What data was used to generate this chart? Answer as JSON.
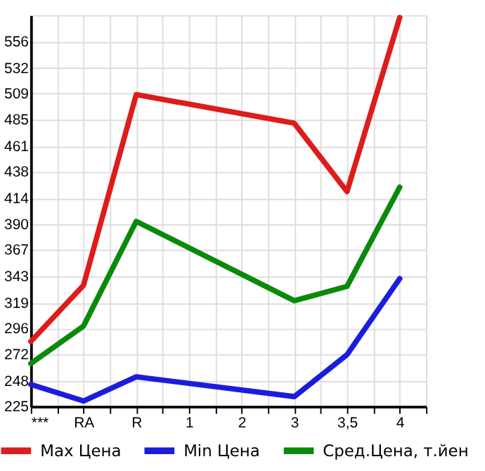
{
  "chart_data": {
    "type": "line",
    "categories": [
      "***",
      "RA",
      "R",
      "1",
      "2",
      "3",
      "3,5",
      "4"
    ],
    "series": [
      {
        "name": "Max Цена",
        "color": "#dd1c1c",
        "values": [
          284,
          335,
          508,
          null,
          null,
          482,
          420,
          578
        ]
      },
      {
        "name": "Min Цена",
        "color": "#1c1cdd",
        "values": [
          245,
          230,
          252,
          null,
          null,
          234,
          272,
          341
        ]
      },
      {
        "name": "Сред.Цена, т.йен",
        "color": "#0a8a0a",
        "values": [
          264,
          298,
          393,
          null,
          null,
          321,
          334,
          424
        ]
      }
    ],
    "ylim": [
      225,
      580
    ],
    "yticks": [
      225,
      248,
      272,
      296,
      319,
      343,
      367,
      390,
      414,
      438,
      461,
      485,
      509,
      532,
      556
    ],
    "grid": true,
    "legend": "bottom",
    "marker": "none",
    "line_style": "solid"
  }
}
